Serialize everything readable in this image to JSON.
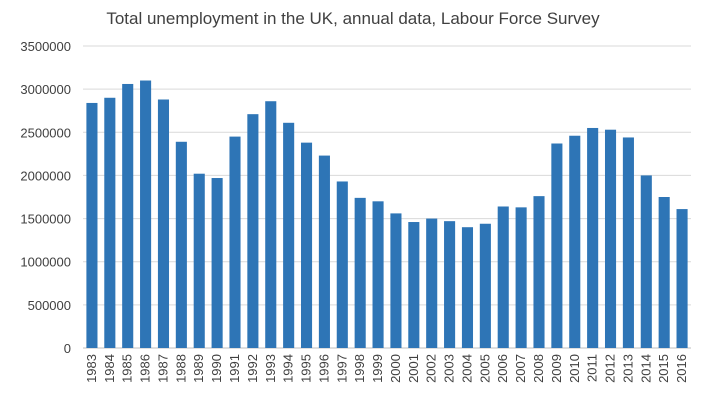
{
  "chart_data": {
    "type": "bar",
    "title": "Total unemployment in the UK, annual data, Labour Force Survey",
    "xlabel": "",
    "ylabel": "",
    "ylim": [
      0,
      3500000
    ],
    "yticks": [
      0,
      500000,
      1000000,
      1500000,
      2000000,
      2500000,
      3000000,
      3500000
    ],
    "grid": true,
    "legend": "none",
    "bar_color": "#2e75b6",
    "categories": [
      "1983",
      "1984",
      "1985",
      "1986",
      "1987",
      "1988",
      "1989",
      "1990",
      "1991",
      "1992",
      "1993",
      "1994",
      "1995",
      "1996",
      "1997",
      "1998",
      "1999",
      "2000",
      "2001",
      "2002",
      "2003",
      "2004",
      "2005",
      "2006",
      "2007",
      "2008",
      "2009",
      "2010",
      "2011",
      "2012",
      "2013",
      "2014",
      "2015",
      "2016"
    ],
    "values": [
      2840000,
      2900000,
      3060000,
      3100000,
      2880000,
      2390000,
      2020000,
      1970000,
      2450000,
      2710000,
      2860000,
      2610000,
      2380000,
      2230000,
      1930000,
      1740000,
      1700000,
      1560000,
      1460000,
      1500000,
      1470000,
      1400000,
      1440000,
      1640000,
      1630000,
      1760000,
      2370000,
      2460000,
      2550000,
      2530000,
      2440000,
      2000000,
      1750000,
      1610000
    ]
  }
}
